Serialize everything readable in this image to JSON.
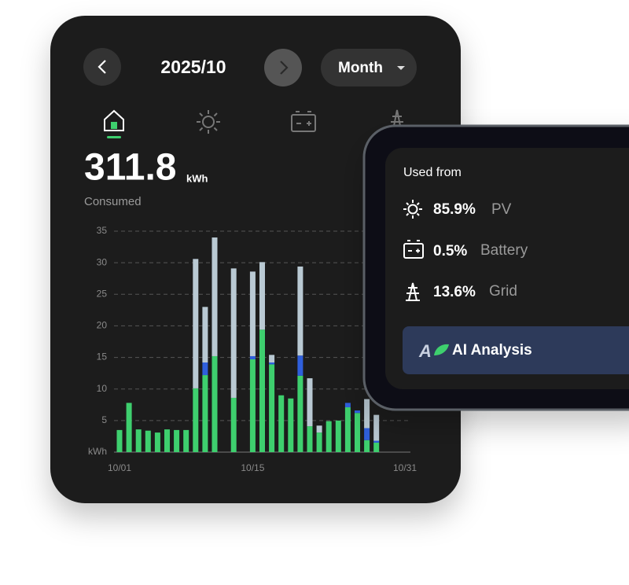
{
  "header": {
    "period": "2025/10",
    "view": "Month"
  },
  "summary": {
    "value": "311.8",
    "unit": "kWh",
    "label": "Consumed"
  },
  "chart_data": {
    "type": "stacked-bar",
    "categories": [
      "10/01",
      null,
      null,
      null,
      null,
      null,
      null,
      null,
      null,
      null,
      null,
      null,
      null,
      null,
      "10/15",
      null,
      null,
      null,
      null,
      null,
      null,
      null,
      null,
      null,
      null,
      null,
      null,
      null,
      null,
      null,
      "10/31"
    ],
    "series": [
      {
        "color": "#3ecf6e",
        "values": [
          3.5,
          7.8,
          3.6,
          3.4,
          3.1,
          3.6,
          3.5,
          3.5,
          10.1,
          12.2,
          15.2,
          0,
          8.6,
          0,
          14.7,
          19.4,
          13.9,
          9.0,
          8.5,
          12.1,
          4.1,
          3.1,
          4.9,
          5.0,
          7.1,
          6.2,
          1.9,
          1.5,
          0,
          0,
          0
        ]
      },
      {
        "color": "#2f5fdc",
        "values": [
          0,
          0,
          0,
          0,
          0,
          0,
          0,
          0,
          0,
          2.0,
          0,
          0,
          0,
          0,
          0.5,
          0,
          0.3,
          0,
          0,
          3.2,
          0,
          0,
          0,
          0,
          0.7,
          0.4,
          1.9,
          0.3,
          0,
          0,
          0
        ]
      },
      {
        "color": "#b9c9d3",
        "values": [
          0,
          0,
          0,
          0,
          0,
          0,
          0,
          0,
          20.5,
          8.8,
          18.8,
          0,
          20.5,
          0,
          13.4,
          10.7,
          1.2,
          0,
          0,
          14.1,
          7.6,
          1.1,
          0,
          0,
          0,
          0,
          4.6,
          4.1,
          0,
          0,
          0
        ]
      }
    ],
    "ylim": [
      0,
      35
    ],
    "yticks": [
      {
        "value": 0,
        "label": "kWh"
      },
      5,
      10,
      15,
      20,
      25,
      30,
      35
    ],
    "grid": true
  },
  "breakdown": {
    "title": "Used from",
    "items": [
      {
        "percent": "85.9%",
        "source": "PV"
      },
      {
        "percent": "0.5%",
        "source": "Battery"
      },
      {
        "percent": "13.6%",
        "source": "Grid"
      }
    ]
  },
  "button": "AI Analysis"
}
